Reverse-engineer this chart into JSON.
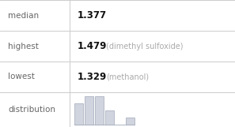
{
  "median_label": "median",
  "median_value": "1.377",
  "highest_label": "highest",
  "highest_value": "1.479",
  "highest_name": "(dimethyl sulfoxide)",
  "lowest_label": "lowest",
  "lowest_value": "1.329",
  "lowest_name": "(methanol)",
  "distribution_label": "distribution",
  "hist_bar_heights": [
    3,
    4,
    4,
    2,
    0,
    1
  ],
  "hist_bar_color": "#d0d4de",
  "hist_bar_edge_color": "#a0a8b8",
  "background_color": "#ffffff",
  "label_color": "#666666",
  "value_color": "#111111",
  "name_color": "#aaaaaa",
  "grid_line_color": "#cccccc",
  "label_fontsize": 7.5,
  "value_fontsize": 8.5,
  "name_fontsize": 7.0,
  "col_split": 88
}
